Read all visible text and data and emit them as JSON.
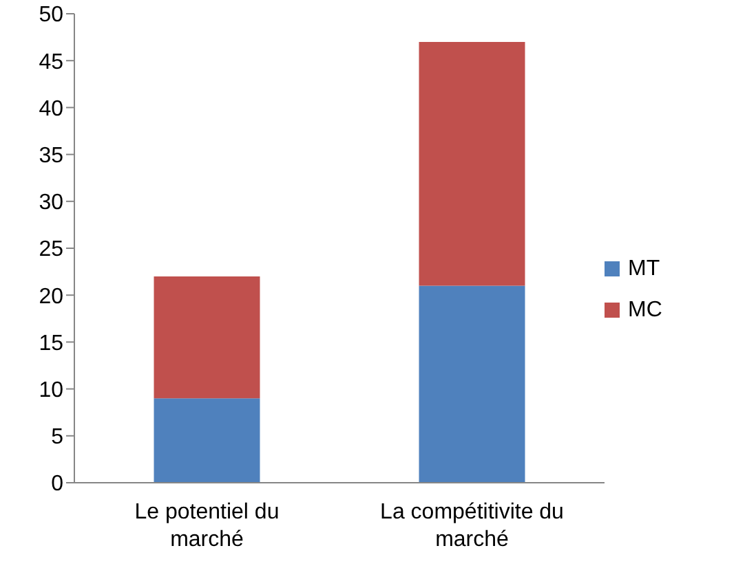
{
  "chart_data": {
    "type": "bar",
    "stacked": true,
    "categories": [
      "Le potentiel du marché",
      "La compétitivite du marché"
    ],
    "series": [
      {
        "name": "MT",
        "color": "#4f81bd",
        "values": [
          9,
          21
        ]
      },
      {
        "name": "MC",
        "color": "#c0504d",
        "values": [
          13,
          26
        ]
      }
    ],
    "ylim": [
      0,
      50
    ],
    "yticks": [
      0,
      5,
      10,
      15,
      20,
      25,
      30,
      35,
      40,
      45,
      50
    ],
    "grid": false,
    "legend": "right"
  }
}
